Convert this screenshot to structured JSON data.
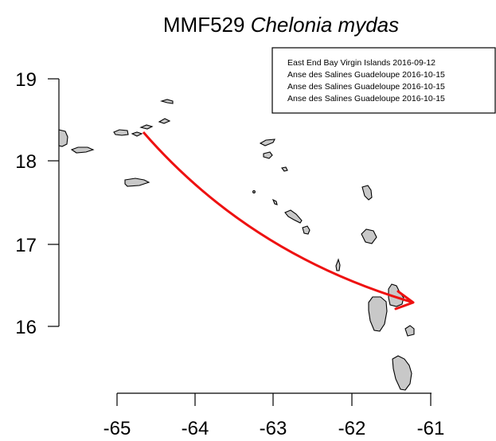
{
  "title": {
    "prefix": "MMF529 ",
    "species": "Chelonia mydas"
  },
  "axes": {
    "x_ticks": [
      "-65",
      "-64",
      "-63",
      "-62",
      "-61"
    ],
    "y_ticks": [
      "19",
      "18",
      "17",
      "16"
    ]
  },
  "legend": {
    "entries": [
      "East End Bay Virgin Islands 2016-09-12",
      "Anse des Salines Guadeloupe 2016-10-15",
      "Anse des Salines Guadeloupe 2016-10-15",
      "Anse des Salines Guadeloupe 2016-10-15"
    ]
  },
  "track": {
    "color": "#ee1111",
    "start": {
      "lon": -64.67,
      "lat": 18.35
    },
    "end": {
      "lon": -61.2,
      "lat": 16.25
    }
  },
  "colors": {
    "land": "#c8c8c8",
    "track": "#ee1111"
  }
}
